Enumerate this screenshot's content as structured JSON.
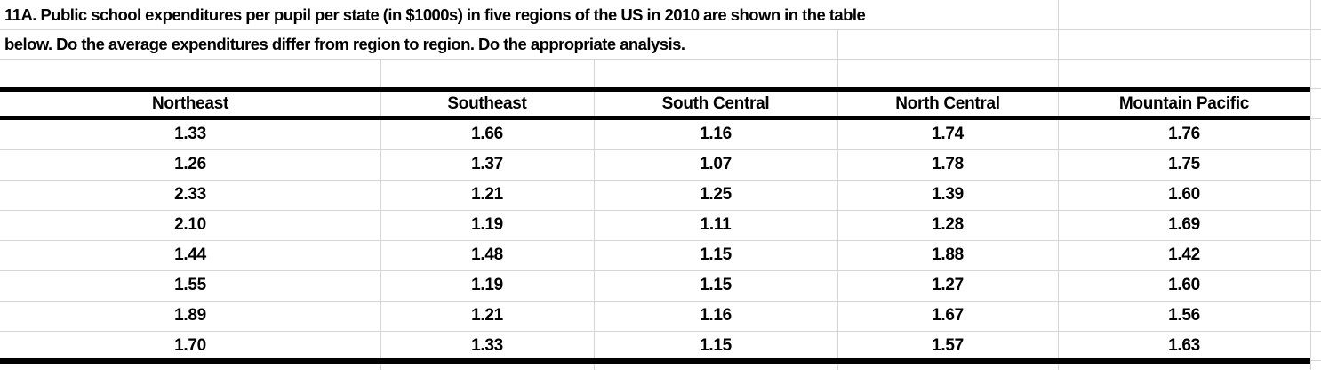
{
  "title": {
    "line1": "11A. Public school expenditures per pupil per state (in $1000s) in five regions of the US in 2010 are shown in the table",
    "line2": "below. Do the average expenditures differ from region to region. Do the appropriate analysis."
  },
  "table": {
    "headers": [
      "Northeast",
      "Southeast",
      "South Central",
      "North Central",
      "Mountain Pacific"
    ],
    "rows": [
      [
        "1.33",
        "1.66",
        "1.16",
        "1.74",
        "1.76"
      ],
      [
        "1.26",
        "1.37",
        "1.07",
        "1.78",
        "1.75"
      ],
      [
        "2.33",
        "1.21",
        "1.25",
        "1.39",
        "1.60"
      ],
      [
        "2.10",
        "1.19",
        "1.11",
        "1.28",
        "1.69"
      ],
      [
        "1.44",
        "1.48",
        "1.15",
        "1.88",
        "1.42"
      ],
      [
        "1.55",
        "1.19",
        "1.15",
        "1.27",
        "1.60"
      ],
      [
        "1.89",
        "1.21",
        "1.16",
        "1.67",
        "1.56"
      ],
      [
        "1.70",
        "1.33",
        "1.15",
        "1.57",
        "1.63"
      ]
    ]
  },
  "colors": {
    "background": "#ffffff",
    "text": "#000000",
    "gridline": "#d6d6d6",
    "table_border": "#000000"
  }
}
